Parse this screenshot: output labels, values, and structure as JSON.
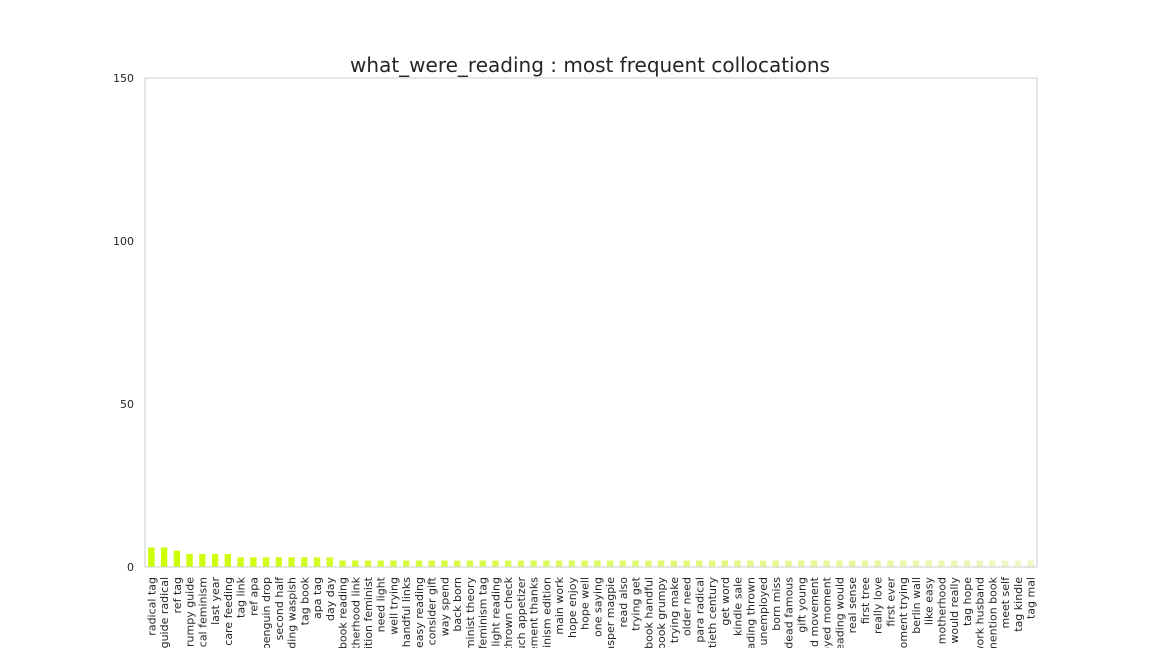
{
  "chart_data": {
    "type": "bar",
    "title": "what_were_reading : most frequent collocations",
    "xlabel": "",
    "ylabel": "",
    "ylim": [
      0,
      150
    ],
    "yticks": [
      0,
      50,
      100,
      150
    ],
    "grid": false,
    "legend": "none",
    "color_start": "#ccff00",
    "color_end": "#eef7c8",
    "categories": [
      "radical tag",
      "guide radical",
      "ref tag",
      "grumpy guide",
      "dical feminism",
      "last year",
      "care feeding",
      "tag link",
      "ref apa",
      "penguin drop",
      "second half",
      "eeding waspish",
      "tag book",
      "apa tag",
      "day day",
      "book reading",
      "otherhood link",
      "edition feminist",
      "need light",
      "well trying",
      "handful links",
      "easy reading",
      "consider gift",
      "way spend",
      "back born",
      "feminist theory",
      "feminism tag",
      "light reading",
      "thrown check",
      "nuch appetizer",
      "vement thanks",
      "minism edition",
      "main work",
      "hope enjoy",
      "hope well",
      "one saying",
      "jasper magpie",
      "read also",
      "trying get",
      "book handful",
      "book grumpy",
      "trying make",
      "older need",
      "para radical",
      "entieth century",
      "get word",
      "kindle sale",
      "reading thrown",
      "d unemployed",
      "born miss",
      "dead famous",
      "gift young",
      "and movement",
      "loyed moment",
      "reading would",
      "real sense",
      "first tree",
      "really love",
      "first ever",
      "moment trying",
      "berlin wall",
      "like easy",
      "k motherhood",
      "would really",
      "tag hope",
      "work husband",
      "mention book",
      "meet self",
      "tag kindle",
      "tag mal"
    ],
    "values": [
      6,
      6,
      5,
      4,
      4,
      4,
      4,
      3,
      3,
      3,
      3,
      3,
      3,
      3,
      3,
      2,
      2,
      2,
      2,
      2,
      2,
      2,
      2,
      2,
      2,
      2,
      2,
      2,
      2,
      2,
      2,
      2,
      2,
      2,
      2,
      2,
      2,
      2,
      2,
      2,
      2,
      2,
      2,
      2,
      2,
      2,
      2,
      2,
      2,
      2,
      2,
      2,
      2,
      2,
      2,
      2,
      2,
      2,
      2,
      2,
      2,
      2,
      2,
      2,
      2,
      2,
      2,
      2,
      2,
      2
    ]
  }
}
